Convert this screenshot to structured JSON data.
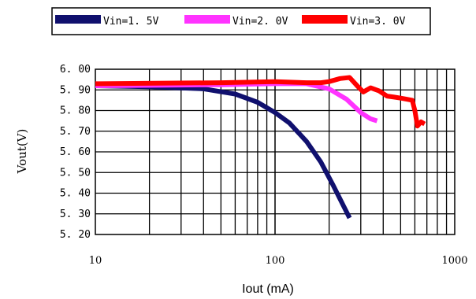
{
  "chart_data": {
    "type": "line",
    "title": "",
    "xlabel": "Iout (mA)",
    "ylabel": "Vout(V)",
    "x_scale": "log",
    "xlim": [
      10,
      1000
    ],
    "ylim": [
      5.2,
      6.0
    ],
    "x_ticks": [
      "10",
      "100",
      "1000"
    ],
    "y_ticks": [
      "6. 00",
      "5. 90",
      "5. 80",
      "5. 70",
      "5. 60",
      "5. 50",
      "5. 40",
      "5. 30",
      "5. 20"
    ],
    "grid": true,
    "legend_position": "top",
    "series": [
      {
        "name": "Vin=1. 5V",
        "color": "#10106e",
        "x": [
          10,
          20,
          40,
          60,
          80,
          100,
          120,
          150,
          180,
          210,
          240,
          260
        ],
        "y": [
          5.92,
          5.915,
          5.905,
          5.88,
          5.84,
          5.79,
          5.74,
          5.65,
          5.55,
          5.44,
          5.34,
          5.28
        ]
      },
      {
        "name": "Vin=2. 0V",
        "color": "#ff33ff",
        "x": [
          10,
          50,
          100,
          150,
          200,
          250,
          300,
          340,
          370
        ],
        "y": [
          5.92,
          5.925,
          5.93,
          5.93,
          5.905,
          5.855,
          5.79,
          5.76,
          5.75
        ]
      },
      {
        "name": "Vin=3. 0V",
        "color": "#ff0000",
        "x": [
          10,
          50,
          100,
          150,
          180,
          200,
          230,
          260,
          290,
          310,
          340,
          380,
          420,
          460,
          500,
          540,
          580,
          600,
          620,
          650,
          680
        ],
        "y": [
          5.93,
          5.935,
          5.94,
          5.935,
          5.935,
          5.94,
          5.955,
          5.96,
          5.915,
          5.89,
          5.91,
          5.895,
          5.87,
          5.865,
          5.86,
          5.855,
          5.85,
          5.8,
          5.725,
          5.745,
          5.735
        ]
      }
    ]
  }
}
